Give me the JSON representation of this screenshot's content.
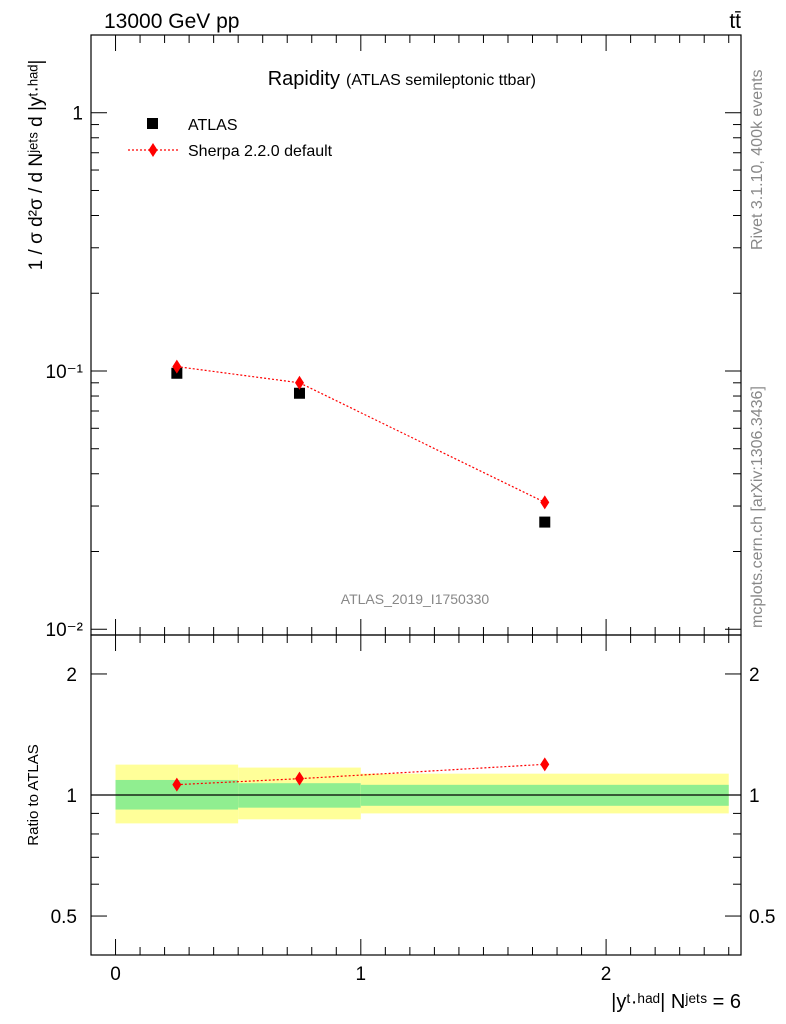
{
  "header": {
    "left": "13000 GeV pp",
    "right": "tt̄"
  },
  "side_labels": {
    "rivet": "Rivet 3.1.10,  400k events",
    "mcplots": "mcplots.cern.ch [arXiv:1306.3436]"
  },
  "chart_data": [
    {
      "type": "scatter",
      "title": "Rapidity",
      "subtitle": "(ATLAS semileptonic ttbar)",
      "watermark": "ATLAS_2019_I1750330",
      "ylabel": "1 / σ d²σ / d Nʲᵉᵗˢ d |yᵗ·ʰᵃᵈ|",
      "y_scale": "log",
      "ylim": [
        0.0095,
        2.0
      ],
      "y_tick_labels": [
        "10⁻²",
        "10⁻¹",
        "1"
      ],
      "legend_position": "top-left",
      "bins": [
        [
          0.0,
          0.5
        ],
        [
          0.5,
          1.0
        ],
        [
          1.0,
          2.5
        ]
      ],
      "series": [
        {
          "name": "ATLAS",
          "marker": "square",
          "color": "#000000",
          "x": [
            0.25,
            0.75,
            1.75
          ],
          "y": [
            0.098,
            0.082,
            0.026
          ]
        },
        {
          "name": "Sherpa 2.2.0 default",
          "marker": "diamond",
          "line": "dotted",
          "color": "#ff0000",
          "x": [
            0.25,
            0.75,
            1.75
          ],
          "y": [
            0.104,
            0.09,
            0.031
          ]
        }
      ]
    },
    {
      "type": "scatter",
      "ylabel": "Ratio to ATLAS",
      "xlabel": "|yᵗ·ʰᵃᵈ| Nʲᵉᵗˢ = 6",
      "xlim": [
        -0.1,
        2.55
      ],
      "ylim": [
        0.4,
        2.5
      ],
      "x_ticks": [
        0,
        1,
        2
      ],
      "y_ticks": [
        0.5,
        1,
        2
      ],
      "bands": [
        {
          "x0": 0.0,
          "x1": 0.5,
          "stat_lo": 0.92,
          "stat_hi": 1.09,
          "total_lo": 0.85,
          "total_hi": 1.19
        },
        {
          "x0": 0.5,
          "x1": 1.0,
          "stat_lo": 0.93,
          "stat_hi": 1.07,
          "total_lo": 0.87,
          "total_hi": 1.17
        },
        {
          "x0": 1.0,
          "x1": 2.5,
          "stat_lo": 0.94,
          "stat_hi": 1.06,
          "total_lo": 0.9,
          "total_hi": 1.13
        }
      ],
      "band_colors": {
        "stat": "#90ee90",
        "total": "#ffff99"
      },
      "series": [
        {
          "name": "Sherpa 2.2.0 default",
          "color": "#ff0000",
          "x": [
            0.25,
            0.75,
            1.75
          ],
          "y": [
            1.061,
            1.098,
            1.192
          ]
        }
      ]
    }
  ]
}
